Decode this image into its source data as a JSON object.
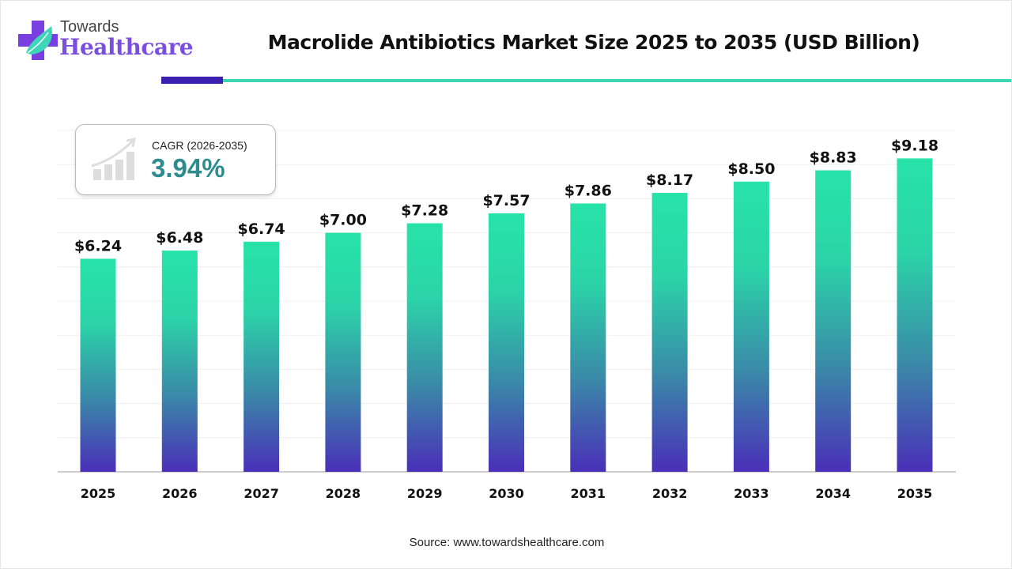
{
  "logo": {
    "line1": "Towards",
    "line2": "Healthcare"
  },
  "colors": {
    "bar_top": "#27e3a8",
    "bar_bottom": "#4a2fb8",
    "accent_dark": "#3a1fb0",
    "accent_light": "#3dd6b0",
    "cagr": "#2e8c8f"
  },
  "cagr": {
    "label": "CAGR (2026-2035)",
    "value": "3.94%",
    "icon": "growth-chart-icon"
  },
  "source": "Source: www.towardshealthcare.com",
  "chart_data": {
    "type": "bar",
    "title": "Macrolide Antibiotics Market Size 2025 to 2035 (USD Billion)",
    "categories": [
      "2025",
      "2026",
      "2027",
      "2028",
      "2029",
      "2030",
      "2031",
      "2032",
      "2033",
      "2034",
      "2035"
    ],
    "values": [
      6.24,
      6.48,
      6.74,
      7.0,
      7.28,
      7.57,
      7.86,
      8.17,
      8.5,
      8.83,
      9.18
    ],
    "labels": [
      "$6.24",
      "$6.48",
      "$6.74",
      "$7.00",
      "$7.28",
      "$7.57",
      "$7.86",
      "$8.17",
      "$8.50",
      "$8.83",
      "$9.18"
    ],
    "xlabel": "",
    "ylabel": "USD Billion",
    "ylim": [
      0,
      10
    ],
    "grid": true
  }
}
